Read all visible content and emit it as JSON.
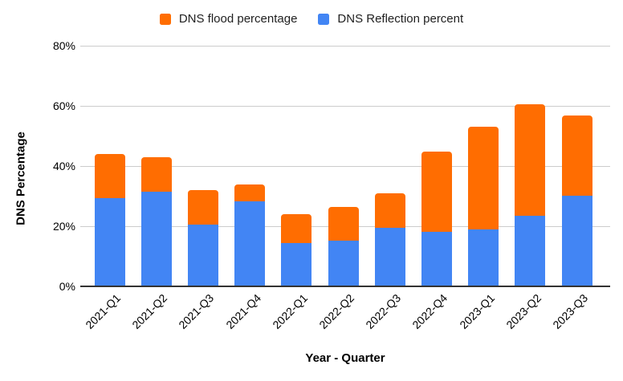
{
  "legend": {
    "items": [
      {
        "label": "DNS flood percentage",
        "color": "#FF6D01"
      },
      {
        "label": "DNS Reflection percent",
        "color": "#4285F4"
      }
    ]
  },
  "axes": {
    "x_title": "Year - Quarter",
    "y_title": "DNS Percentage",
    "y_tick_labels": [
      "0%",
      "20%",
      "40%",
      "60%",
      "80%"
    ]
  },
  "colors": {
    "gridline": "#cccccc",
    "axis_line": "#333333",
    "text": "#000000"
  },
  "chart_data": {
    "type": "bar",
    "stacked": true,
    "title": "",
    "xlabel": "Year - Quarter",
    "ylabel": "DNS Percentage",
    "ylim": [
      0,
      80
    ],
    "y_tick_values": [
      0,
      20,
      40,
      60,
      80
    ],
    "grid": true,
    "legend_position": "top",
    "categories": [
      "2021-Q1",
      "2021-Q2",
      "2021-Q3",
      "2021-Q4",
      "2022-Q1",
      "2022-Q2",
      "2022-Q3",
      "2022-Q4",
      "2023-Q1",
      "2023-Q2",
      "2023-Q3"
    ],
    "series": [
      {
        "name": "DNS Reflection percent",
        "color": "#4285F4",
        "stack_position": "bottom",
        "values": [
          29.4,
          31.4,
          20.5,
          28.3,
          14.4,
          15.3,
          19.5,
          18.1,
          19.0,
          23.5,
          30.1
        ]
      },
      {
        "name": "DNS flood percentage",
        "color": "#FF6D01",
        "stack_position": "top",
        "values": [
          14.7,
          11.6,
          11.5,
          5.6,
          9.6,
          11.1,
          11.4,
          26.6,
          34.0,
          37.0,
          26.8
        ]
      }
    ],
    "totals": [
      44.1,
      43.0,
      32.0,
      33.9,
      24.0,
      26.4,
      30.9,
      44.7,
      53.0,
      60.5,
      56.9
    ]
  }
}
